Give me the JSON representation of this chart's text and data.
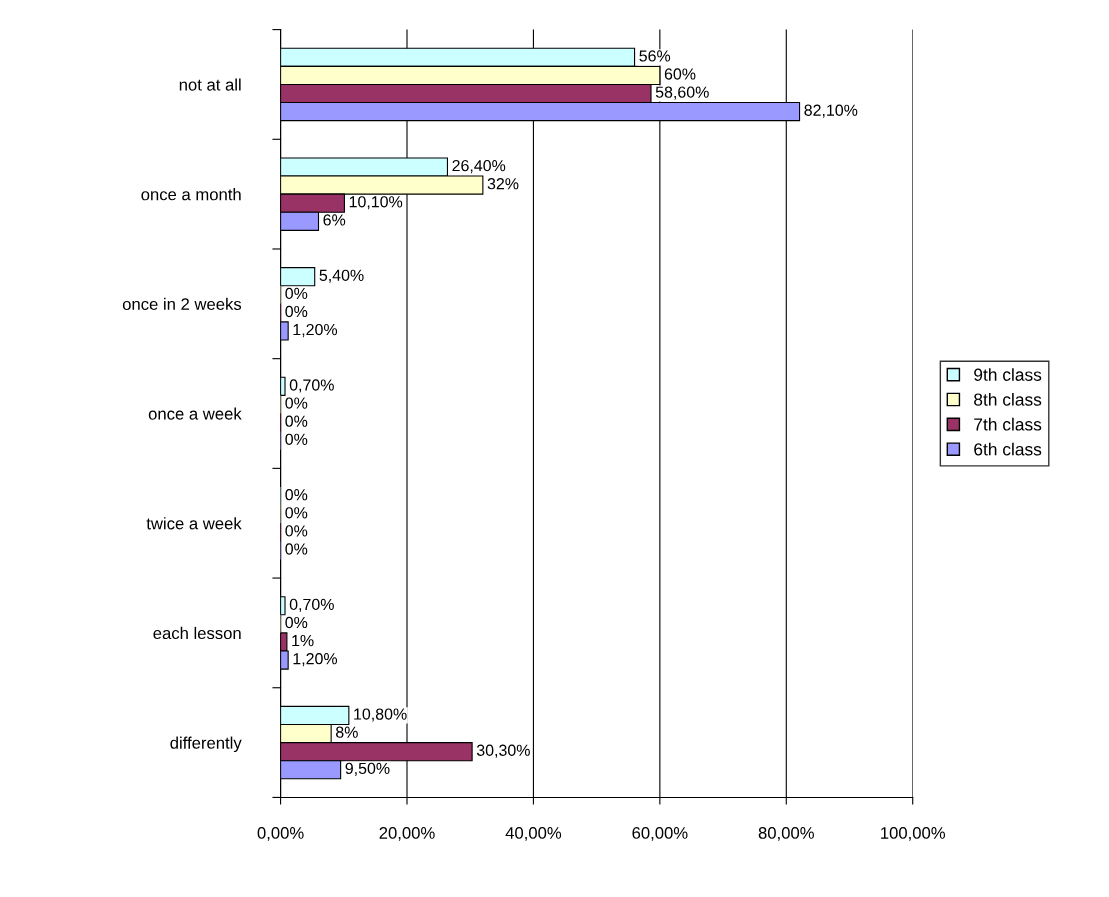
{
  "chart_data": {
    "type": "bar",
    "orientation": "horizontal",
    "categories": [
      "not at all",
      "once a month",
      "once in 2 weeks",
      "once a week",
      "twice a week",
      "each lesson",
      "differently"
    ],
    "series": [
      {
        "name": "9th class",
        "color": "#ccffff",
        "values": [
          56,
          26.4,
          5.4,
          0.7,
          0,
          0.7,
          10.8
        ],
        "value_labels": [
          "56%",
          "26,40%",
          "5,40%",
          "0,70%",
          "0%",
          "0,70%",
          "10,80%"
        ]
      },
      {
        "name": "8th class",
        "color": "#ffffcc",
        "values": [
          60,
          32,
          0,
          0,
          0,
          0,
          8
        ],
        "value_labels": [
          "60%",
          "32%",
          "0%",
          "0%",
          "0%",
          "0%",
          "8%"
        ]
      },
      {
        "name": "7th class",
        "color": "#993366",
        "values": [
          58.6,
          10.1,
          0,
          0,
          0,
          1,
          30.3
        ],
        "value_labels": [
          "58,60%",
          "10,10%",
          "0%",
          "0%",
          "0%",
          "1%",
          "30,30%"
        ]
      },
      {
        "name": "6th class",
        "color": "#9999ff",
        "values": [
          82.1,
          6,
          1.2,
          0,
          0,
          1.2,
          9.5
        ],
        "value_labels": [
          "82,10%",
          "6%",
          "1,20%",
          "0%",
          "0%",
          "1,20%",
          "9,50%"
        ]
      }
    ],
    "xlim": [
      0,
      100
    ],
    "xticks": [
      {
        "value": 0,
        "label": "0,00%"
      },
      {
        "value": 20,
        "label": "20,00%"
      },
      {
        "value": 40,
        "label": "40,00%"
      },
      {
        "value": 60,
        "label": "60,00%"
      },
      {
        "value": 80,
        "label": "80,00%"
      },
      {
        "value": 100,
        "label": "100,00%"
      }
    ],
    "grid": "x",
    "legend": "right"
  }
}
